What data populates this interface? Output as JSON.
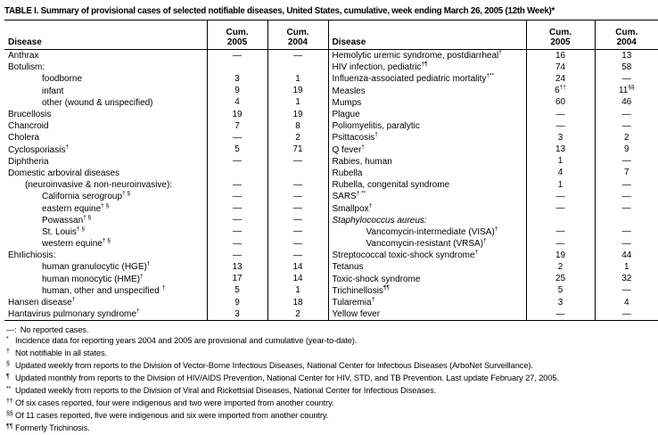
{
  "title": "TABLE I. Summary of provisional cases of selected notifiable diseases, United States, cumulative, week ending March 26, 2005 (12th Week)*",
  "table": {
    "headers": {
      "disease": "Disease",
      "cum": "Cum.",
      "y2005": "2005",
      "y2004": "2004"
    },
    "left_rows": [
      {
        "label": "Anthrax",
        "a": "—",
        "b": "—"
      },
      {
        "label": "Botulism:",
        "a": "",
        "b": ""
      },
      {
        "label": "foodborne",
        "ind": 2,
        "a": "3",
        "b": "1"
      },
      {
        "label": "infant",
        "ind": 2,
        "a": "9",
        "b": "19"
      },
      {
        "label": "other (wound & unspecified)",
        "ind": 2,
        "a": "4",
        "b": "1"
      },
      {
        "label": "Brucellosis",
        "a": "19",
        "b": "19"
      },
      {
        "label": "Chancroid",
        "a": "7",
        "b": "8"
      },
      {
        "label": "Cholera",
        "a": "—",
        "b": "2"
      },
      {
        "label": "Cyclosporiasis",
        "sup": "†",
        "a": "5",
        "b": "71"
      },
      {
        "label": "Diphtheria",
        "a": "—",
        "b": "—"
      },
      {
        "label": "Domestic arboviral diseases",
        "a": "",
        "b": ""
      },
      {
        "label": "(neuroinvasive & non-neuroinvasive):",
        "ind": 1,
        "a": "—",
        "b": "—"
      },
      {
        "label": "California serogroup",
        "sup": "† §",
        "ind": 2,
        "a": "—",
        "b": "—"
      },
      {
        "label": "eastern equine",
        "sup": "† §",
        "ind": 2,
        "a": "—",
        "b": "—"
      },
      {
        "label": "Powassan",
        "sup": "† §",
        "ind": 2,
        "a": "—",
        "b": "—"
      },
      {
        "label": "St. Louis",
        "sup": "† §",
        "ind": 2,
        "a": "—",
        "b": "—"
      },
      {
        "label": "western equine",
        "sup": "† §",
        "ind": 2,
        "a": "—",
        "b": "—"
      },
      {
        "label": "Ehrlichiosis:",
        "a": "—",
        "b": "—"
      },
      {
        "label": "human granulocytic (HGE)",
        "sup": "†",
        "ind": 2,
        "a": "13",
        "b": "14"
      },
      {
        "label": "human monocytic (HME)",
        "sup": "†",
        "ind": 2,
        "a": "17",
        "b": "14"
      },
      {
        "label": "human, other and unspecified ",
        "sup": "†",
        "ind": 2,
        "a": "5",
        "b": "1"
      },
      {
        "label": "Hansen disease",
        "sup": "†",
        "a": "9",
        "b": "18"
      },
      {
        "label": "Hantavirus pulmonary syndrome",
        "sup": "†",
        "a": "3",
        "b": "2"
      }
    ],
    "right_rows": [
      {
        "label": "Hemolytic uremic syndrome, postdiarrheal",
        "sup": "†",
        "a": "16",
        "b": "13"
      },
      {
        "label": "HIV infection, pediatric",
        "sup": "†¶",
        "a": "74",
        "b": "58"
      },
      {
        "label": "Influenza-associated pediatric mortality",
        "sup": "†**",
        "a": "24",
        "b": "—"
      },
      {
        "label": "Measles",
        "a": "6",
        "a_sup": "††",
        "b": "11",
        "b_sup": "§§"
      },
      {
        "label": "Mumps",
        "a": "60",
        "b": "46"
      },
      {
        "label": "Plague",
        "a": "—",
        "b": "—"
      },
      {
        "label": "Poliomyelitis, paralytic",
        "a": "—",
        "b": "—"
      },
      {
        "label": "Psittacosis",
        "sup": "†",
        "a": "3",
        "b": "2"
      },
      {
        "label": "Q fever",
        "sup": "†",
        "a": "13",
        "b": "9"
      },
      {
        "label": "Rabies, human",
        "a": "1",
        "b": "—"
      },
      {
        "label": "Rubella",
        "a": "4",
        "b": "7"
      },
      {
        "label": "Rubella, congenital syndrome",
        "a": "1",
        "b": "—"
      },
      {
        "label": "SARS",
        "sup": "† **",
        "a": "—",
        "b": "—"
      },
      {
        "label": "Smallpox",
        "sup": "†",
        "a": "—",
        "b": "—"
      },
      {
        "label": "Staphylococcus aureus:",
        "it": true,
        "a": "",
        "b": ""
      },
      {
        "label": "Vancomycin-intermediate (VISA)",
        "sup": "†",
        "ind": 2,
        "a": "—",
        "b": "—"
      },
      {
        "label": "Vancomycin-resistant (VRSA)",
        "sup": "†",
        "ind": 2,
        "a": "—",
        "b": "—"
      },
      {
        "label": "Streptococcal toxic-shock syndrome",
        "sup": "†",
        "a": "19",
        "b": "44"
      },
      {
        "label": "Tetanus",
        "a": "2",
        "b": "1"
      },
      {
        "label": "Toxic-shock syndrome",
        "a": "25",
        "b": "32"
      },
      {
        "label": "Trichinellosis",
        "sup": "¶¶",
        "a": "5",
        "b": "—"
      },
      {
        "label": "Tularemia",
        "sup": "†",
        "a": "3",
        "b": "4"
      },
      {
        "label": "Yellow fever",
        "a": "—",
        "b": "—"
      }
    ]
  },
  "footnotes": [
    {
      "sym": "—:",
      "plain": true,
      "text": "No reported cases."
    },
    {
      "sym": "*",
      "text": "Incidence data for reporting years 2004 and 2005 are provisional and cumulative (year-to-date)."
    },
    {
      "sym": "†",
      "text": "Not notifiable in all states."
    },
    {
      "sym": "§",
      "text": "Updated weekly from reports to the Division of Vector-Borne Infectious Diseases, National Center for Infectious Diseases (ArboNet Surveillance)."
    },
    {
      "sym": "¶",
      "text": "Updated monthly from reports to the Division of HIV/AIDS Prevention, National Center for HIV, STD, and TB Prevention. Last update February 27, 2005."
    },
    {
      "sym": "**",
      "text": "Updated weekly from reports to the Division of Viral and Rickettsial Diseases, National Center for Infectious Diseases."
    },
    {
      "sym": "††",
      "text": "Of six cases reported, four were indigenous and two were imported from another country."
    },
    {
      "sym": "§§",
      "text": "Of 11 cases reported, five were indigenous and six were imported from another country."
    },
    {
      "sym": "¶¶",
      "text": "Formerly Trichinosis."
    }
  ]
}
